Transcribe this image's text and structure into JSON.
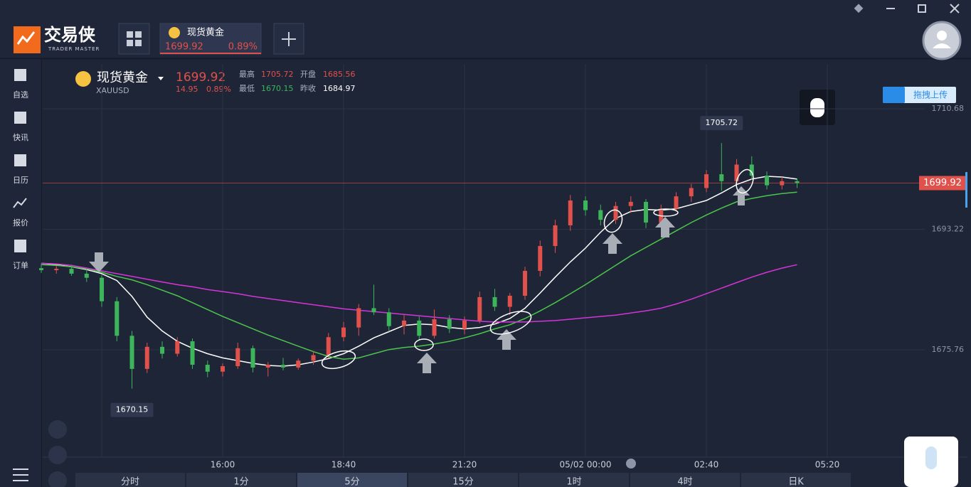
{
  "app": {
    "logo_name": "交易侠",
    "logo_sub": "TRADER MASTER"
  },
  "sidebar": [
    "自选",
    "快讯",
    "日历",
    "报价",
    "订单"
  ],
  "quote": {
    "name": "现货黄金",
    "symbol": "XAUUSD",
    "price": 1699.92,
    "change": 14.95,
    "change_pct": "0.89%",
    "high_label": "最高",
    "high": 1705.72,
    "open_label": "开盘",
    "open": 1685.56,
    "low_label": "最低",
    "low": 1670.15,
    "prev_label": "昨收",
    "prev": 1684.97
  },
  "upload": "拖拽上传",
  "periods": [
    "分时",
    "1分",
    "5分",
    "15分",
    "1时",
    "4时",
    "日K"
  ],
  "chart_data": {
    "type": "candlestick",
    "up_color": "#e0514b",
    "down_color": "#3db55a",
    "ylim": [
      1660.22,
      1717.17
    ],
    "yticks": [
      1675.76,
      1693.22,
      1710.68
    ],
    "xlabels": [
      "16:00",
      "18:40",
      "21:20",
      "05/02 00:00",
      "02:40",
      "05:20"
    ],
    "open": [
      1687.6,
      1687.3,
      1687.5,
      1686.8,
      1686.2,
      1682.8,
      1677.8,
      1673.0,
      1676.2,
      1675.2,
      1677.0,
      1673.6,
      1672.6,
      1673.4,
      1676.0,
      1673.2,
      1673.6,
      1673.2,
      1674.2,
      1675.0,
      1677.6,
      1679.0,
      1681.8,
      1681.2,
      1679.2,
      1680.0,
      1677.8,
      1680.2,
      1678.8,
      1680.0,
      1683.4,
      1682.0,
      1683.6,
      1687.2,
      1690.8,
      1693.8,
      1697.4,
      1696.0,
      1694.6,
      1696.6,
      1697.2,
      1694.2,
      1696.2,
      1698.0,
      1699.2,
      1701.2,
      1700.2,
      1702.6,
      1701.0,
      1699.6,
      1700.2
    ],
    "high": [
      1688.2,
      1687.9,
      1688.0,
      1687.5,
      1686.6,
      1683.4,
      1678.5,
      1676.8,
      1677.0,
      1677.6,
      1677.4,
      1674.2,
      1673.8,
      1676.8,
      1676.4,
      1674.0,
      1674.6,
      1674.5,
      1675.6,
      1678.2,
      1679.8,
      1682.4,
      1685.2,
      1681.8,
      1680.8,
      1680.6,
      1681.6,
      1680.8,
      1680.6,
      1684.2,
      1684.6,
      1684.0,
      1687.8,
      1691.6,
      1694.6,
      1698.2,
      1698.0,
      1696.8,
      1697.2,
      1698.0,
      1697.6,
      1696.8,
      1698.6,
      1699.8,
      1701.8,
      1705.72,
      1703.4,
      1703.8,
      1701.6,
      1700.8,
      1700.6
    ],
    "low": [
      1686.9,
      1686.8,
      1686.5,
      1685.6,
      1682.0,
      1677.0,
      1670.15,
      1672.4,
      1674.5,
      1674.8,
      1673.0,
      1671.8,
      1671.9,
      1673.0,
      1672.5,
      1671.9,
      1672.8,
      1672.9,
      1673.6,
      1674.6,
      1677.0,
      1677.8,
      1680.8,
      1678.4,
      1678.0,
      1677.2,
      1677.4,
      1678.2,
      1678.0,
      1679.6,
      1681.4,
      1680.8,
      1683.0,
      1686.4,
      1689.8,
      1693.0,
      1695.2,
      1693.8,
      1694.0,
      1695.6,
      1693.4,
      1693.8,
      1695.8,
      1697.2,
      1698.6,
      1698.8,
      1699.6,
      1700.4,
      1699.0,
      1699.0,
      1699.2
    ],
    "close": [
      1687.3,
      1687.5,
      1686.8,
      1686.2,
      1682.8,
      1677.8,
      1673.0,
      1676.2,
      1675.2,
      1677.0,
      1673.6,
      1672.6,
      1673.4,
      1676.0,
      1673.2,
      1673.6,
      1673.2,
      1674.2,
      1675.0,
      1677.6,
      1679.0,
      1681.8,
      1681.2,
      1679.2,
      1680.0,
      1677.8,
      1680.2,
      1678.8,
      1680.0,
      1683.4,
      1682.0,
      1683.6,
      1687.2,
      1690.8,
      1693.8,
      1697.4,
      1696.0,
      1694.6,
      1696.6,
      1697.2,
      1694.2,
      1696.2,
      1698.0,
      1699.2,
      1701.2,
      1700.2,
      1702.6,
      1701.0,
      1699.6,
      1700.2,
      1699.92
    ],
    "lines": [
      {
        "color": "#ffffff",
        "values": [
          1688.3,
          1688.1,
          1687.8,
          1687.4,
          1686.8,
          1685.8,
          1683.5,
          1680.5,
          1678.5,
          1677.0,
          1676.0,
          1675.2,
          1674.6,
          1674.2,
          1673.8,
          1673.5,
          1673.4,
          1673.6,
          1674.0,
          1674.5,
          1675.2,
          1676.3,
          1677.5,
          1678.4,
          1679.3,
          1679.5,
          1679.4,
          1679.0,
          1678.8,
          1679.0,
          1679.5,
          1680.3,
          1681.8,
          1684.0,
          1686.3,
          1688.5,
          1690.5,
          1692.8,
          1694.8,
          1695.8,
          1696.1,
          1696.0,
          1696.2,
          1696.8,
          1697.4,
          1698.5,
          1699.7,
          1700.5,
          1700.9,
          1700.8,
          1700.5
        ]
      },
      {
        "color": "#4cc64a",
        "values": [
          1688.1,
          1688.0,
          1687.8,
          1687.5,
          1687.0,
          1686.4,
          1685.9,
          1685.2,
          1684.4,
          1683.6,
          1682.6,
          1681.6,
          1680.6,
          1679.7,
          1678.8,
          1677.9,
          1677.1,
          1676.3,
          1675.5,
          1674.8,
          1674.4,
          1674.6,
          1675.2,
          1675.8,
          1676.1,
          1676.3,
          1676.6,
          1677.0,
          1677.5,
          1678.1,
          1678.8,
          1679.4,
          1680.3,
          1681.4,
          1682.6,
          1683.9,
          1685.2,
          1686.6,
          1688.0,
          1689.4,
          1690.6,
          1691.8,
          1693.0,
          1694.2,
          1695.3,
          1696.3,
          1697.2,
          1697.7,
          1698.1,
          1698.4,
          1698.6
        ]
      },
      {
        "color": "#d534d8",
        "values": [
          1688.3,
          1688.2,
          1688.0,
          1687.6,
          1687.2,
          1686.8,
          1686.4,
          1686.0,
          1685.6,
          1685.2,
          1684.9,
          1684.5,
          1684.2,
          1683.9,
          1683.5,
          1683.2,
          1682.9,
          1682.6,
          1682.3,
          1682.0,
          1681.7,
          1681.5,
          1681.3,
          1681.1,
          1680.9,
          1680.7,
          1680.5,
          1680.3,
          1680.1,
          1679.9,
          1679.8,
          1679.8,
          1679.8,
          1679.9,
          1680.0,
          1680.2,
          1680.4,
          1680.6,
          1680.8,
          1681.1,
          1681.4,
          1681.8,
          1682.4,
          1683.1,
          1683.9,
          1684.7,
          1685.5,
          1686.3,
          1687.0,
          1687.6,
          1688.1
        ]
      }
    ]
  }
}
